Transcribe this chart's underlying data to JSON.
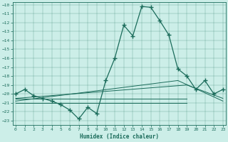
{
  "bg_color": "#cceee8",
  "line_color": "#1a6b5a",
  "xlabel": "Humidex (Indice chaleur)",
  "ylim_bottom": -23.5,
  "ylim_top": -9.7,
  "xlim_left": -0.3,
  "xlim_right": 23.3,
  "yticks": [
    -23,
    -22,
    -21,
    -20,
    -19,
    -18,
    -17,
    -16,
    -15,
    -14,
    -13,
    -12,
    -11,
    -10
  ],
  "xticks": [
    0,
    1,
    2,
    3,
    4,
    5,
    6,
    7,
    8,
    9,
    10,
    11,
    12,
    13,
    14,
    15,
    16,
    17,
    18,
    19,
    20,
    21,
    22,
    23
  ],
  "main_x": [
    0,
    1,
    2,
    3,
    4,
    5,
    6,
    7,
    8,
    9,
    10,
    11,
    12,
    13,
    14,
    15,
    16,
    17,
    18,
    19,
    20,
    21,
    22,
    23
  ],
  "main_y": [
    -20.0,
    -19.5,
    -20.2,
    -20.5,
    -20.8,
    -21.2,
    -21.8,
    -22.8,
    -21.5,
    -22.2,
    -18.5,
    -16.0,
    -12.3,
    -13.5,
    -10.2,
    -10.3,
    -11.8,
    -13.4,
    -17.2,
    -18.0,
    -19.5,
    -18.5,
    -20.0,
    -19.5
  ],
  "trend1_x": [
    0,
    19
  ],
  "trend1_y": [
    -20.5,
    -20.5
  ],
  "trend2_x": [
    0,
    19
  ],
  "trend2_y": [
    -21.0,
    -21.0
  ],
  "trend3_x": [
    0,
    18,
    23
  ],
  "trend3_y": [
    -20.8,
    -18.5,
    -20.8
  ],
  "trend4_x": [
    0,
    19,
    23
  ],
  "trend4_y": [
    -20.5,
    -19.0,
    -20.5
  ]
}
